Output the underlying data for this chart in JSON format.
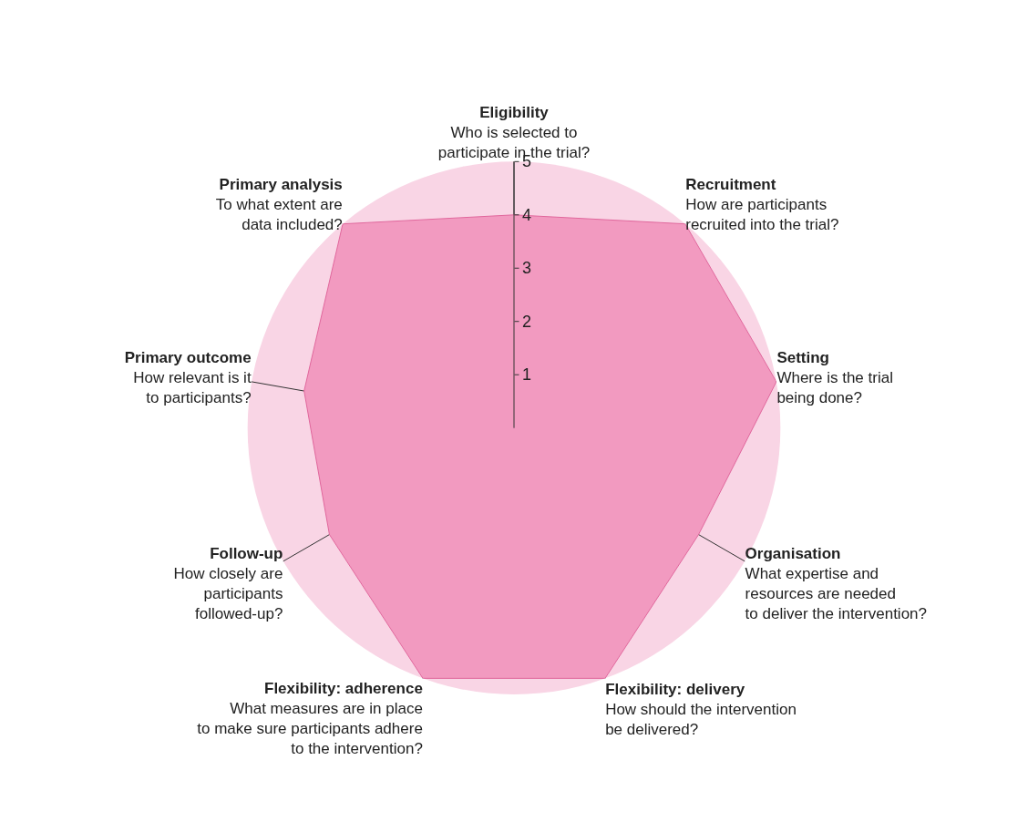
{
  "chart_data": {
    "type": "radar",
    "categories": [
      "Eligibility\nWho is selected to\nparticipate in the trial?",
      "Recruitment\nHow are participants\nrecruited into the trial?",
      "Setting\nWhere is the trial\nbeing done?",
      "Organisation\nWhat expertise and\nresources are needed\nto deliver the intervention?",
      "Flexibility: delivery\nHow should the intervention\nbe delivered?",
      "Flexibility: adherence\nWhat measures are in place\nto make sure participants adhere\nto the intervention?",
      "Follow-up\nHow closely are\nparticipants\nfollowed-up?",
      "Primary outcome\nHow relevant is it\nto participants?",
      "Primary analysis\nTo what extent are\ndata included?"
    ],
    "series": [
      {
        "color": "#f29ac0",
        "values": [
          4,
          5,
          5,
          4,
          5,
          5,
          4,
          4,
          5
        ]
      }
    ],
    "ylim": [
      0,
      5
    ],
    "yticks": [
      1,
      2,
      3,
      4,
      5
    ],
    "grid": "x",
    "marker": "none"
  }
}
